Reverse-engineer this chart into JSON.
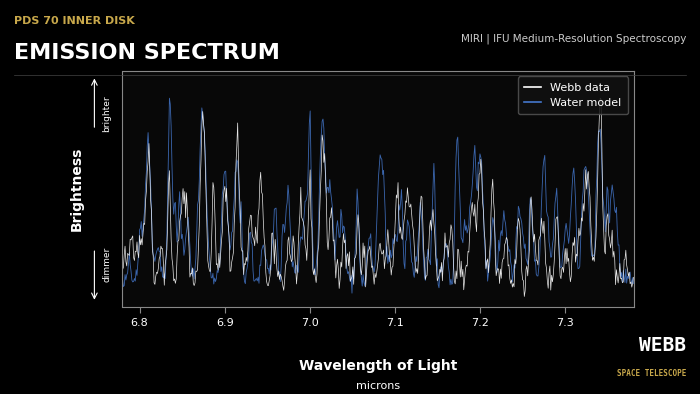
{
  "title_small": "PDS 70 INNER DISK",
  "title_large": "EMISSION SPECTRUM",
  "subtitle_right": "MIRI | IFU Medium-Resolution Spectroscopy",
  "xlabel": "Wavelength of Light",
  "xlabel_sub": "microns",
  "ylabel": "Brightness",
  "ylabel_top": "brighter",
  "ylabel_bottom": "dimmer",
  "xmin": 6.78,
  "xmax": 7.38,
  "xticks": [
    6.8,
    6.9,
    7.0,
    7.1,
    7.2,
    7.3
  ],
  "background_color": "#000000",
  "plot_bg_color": "#080808",
  "title_small_color": "#c8a84b",
  "title_large_color": "#ffffff",
  "subtitle_color": "#cccccc",
  "axis_color": "#888888",
  "webb_color": "#ffffff",
  "space_telescope_color": "#c8a84b",
  "legend_bg": "#1a1a1a",
  "legend_border": "#555555",
  "webb_line_color": "#ffffff",
  "water_line_color": "#4477cc",
  "seed": 42,
  "num_points": 600
}
